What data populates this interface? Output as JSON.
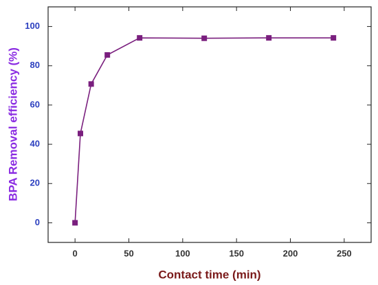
{
  "chart_data": {
    "type": "line",
    "x_label": "Contact time (min)",
    "y_label": "BPA Removal efficiency (%)",
    "x": [
      0,
      5,
      15,
      30,
      60,
      120,
      180,
      240
    ],
    "series": [
      {
        "color": "#7a1f7e",
        "values": [
          0,
          45.5,
          70.7,
          85.5,
          94.2,
          94,
          94.2,
          94.2
        ]
      }
    ],
    "xlim": [
      -25,
      275
    ],
    "xticks": [
      0,
      50,
      100,
      150,
      200,
      250
    ],
    "ylim": [
      -10,
      110
    ],
    "yticks": [
      0,
      20,
      40,
      60,
      80,
      100
    ],
    "grid": false
  }
}
